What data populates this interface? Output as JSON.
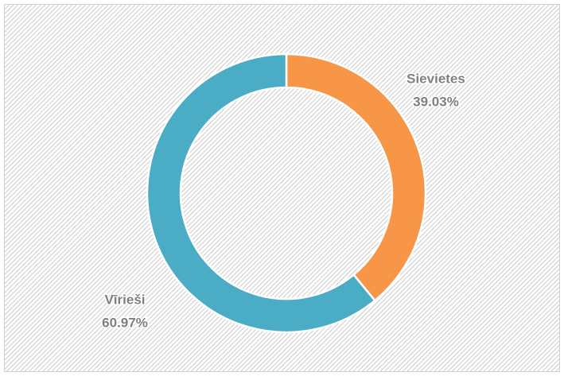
{
  "chart_data": {
    "type": "donut",
    "categories": [
      "Sievietes",
      "Vīrieši"
    ],
    "values": [
      39.03,
      60.97
    ],
    "value_labels": [
      "39.03%",
      "60.97%"
    ],
    "colors": [
      "#f79646",
      "#4bacc6"
    ]
  }
}
